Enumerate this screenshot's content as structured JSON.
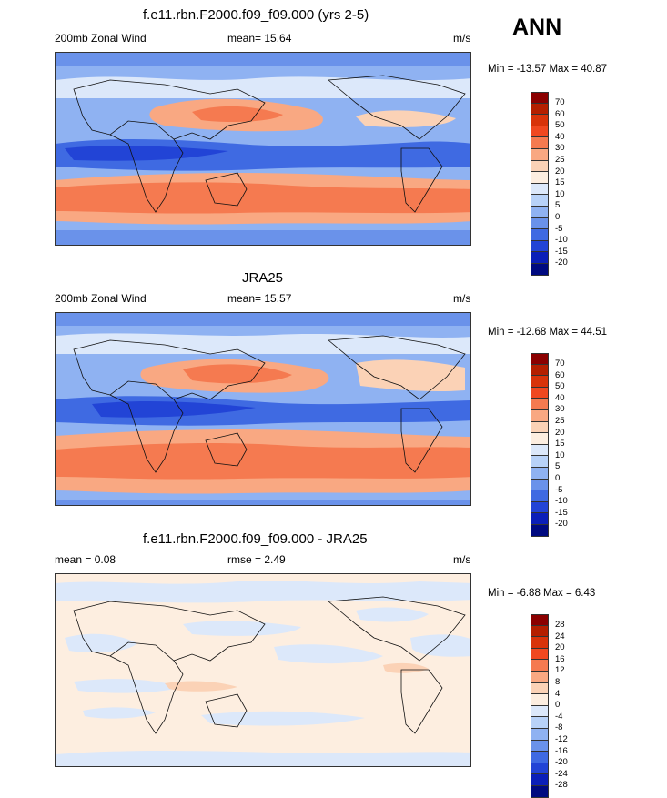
{
  "season": "ANN",
  "panels": [
    {
      "title": "f.e11.rbn.F2000.f09_f09.000 (yrs 2-5)",
      "left_label": "200mb Zonal Wind",
      "center_label": "mean=  15.64",
      "units": "m/s",
      "minmax": "Min = -13.57 Max =  40.87",
      "colorbar": {
        "labels": [
          "70",
          "60",
          "50",
          "40",
          "30",
          "25",
          "20",
          "15",
          "10",
          "5",
          "0",
          "-5",
          "-10",
          "-15",
          "-20"
        ],
        "colors": [
          "#8b0000",
          "#b41f00",
          "#d8330a",
          "#f04820",
          "#f57a50",
          "#f9a882",
          "#fbd2b6",
          "#fdeee0",
          "#dce8fa",
          "#b8d2f8",
          "#8fb2f2",
          "#6a92ea",
          "#3f6ae2",
          "#2244d6",
          "#0b1fb8",
          "#000a80"
        ]
      }
    },
    {
      "title": "JRA25",
      "left_label": "200mb Zonal Wind",
      "center_label": "mean=  15.57",
      "units": "m/s",
      "minmax": "Min = -12.68 Max =  44.51",
      "colorbar": {
        "labels": [
          "70",
          "60",
          "50",
          "40",
          "30",
          "25",
          "20",
          "15",
          "10",
          "5",
          "0",
          "-5",
          "-10",
          "-15",
          "-20"
        ],
        "colors": [
          "#8b0000",
          "#b41f00",
          "#d8330a",
          "#f04820",
          "#f57a50",
          "#f9a882",
          "#fbd2b6",
          "#fdeee0",
          "#dce8fa",
          "#b8d2f8",
          "#8fb2f2",
          "#6a92ea",
          "#3f6ae2",
          "#2244d6",
          "#0b1fb8",
          "#000a80"
        ]
      }
    },
    {
      "title": "f.e11.rbn.F2000.f09_f09.000 - JRA25",
      "left_label": "mean =   0.08",
      "center_label": "rmse =   2.49",
      "units": "m/s",
      "minmax": "Min =  -6.88 Max =   6.43",
      "colorbar": {
        "labels": [
          "28",
          "24",
          "20",
          "16",
          "12",
          "8",
          "4",
          "0",
          "-4",
          "-8",
          "-12",
          "-16",
          "-20",
          "-24",
          "-28"
        ],
        "colors": [
          "#8b0000",
          "#b41f00",
          "#d8330a",
          "#f04820",
          "#f57a50",
          "#f9a882",
          "#fbd2b6",
          "#fdeee0",
          "#dce8fa",
          "#b8d2f8",
          "#8fb2f2",
          "#6a92ea",
          "#3f6ae2",
          "#2244d6",
          "#0b1fb8",
          "#000a80"
        ]
      }
    }
  ]
}
